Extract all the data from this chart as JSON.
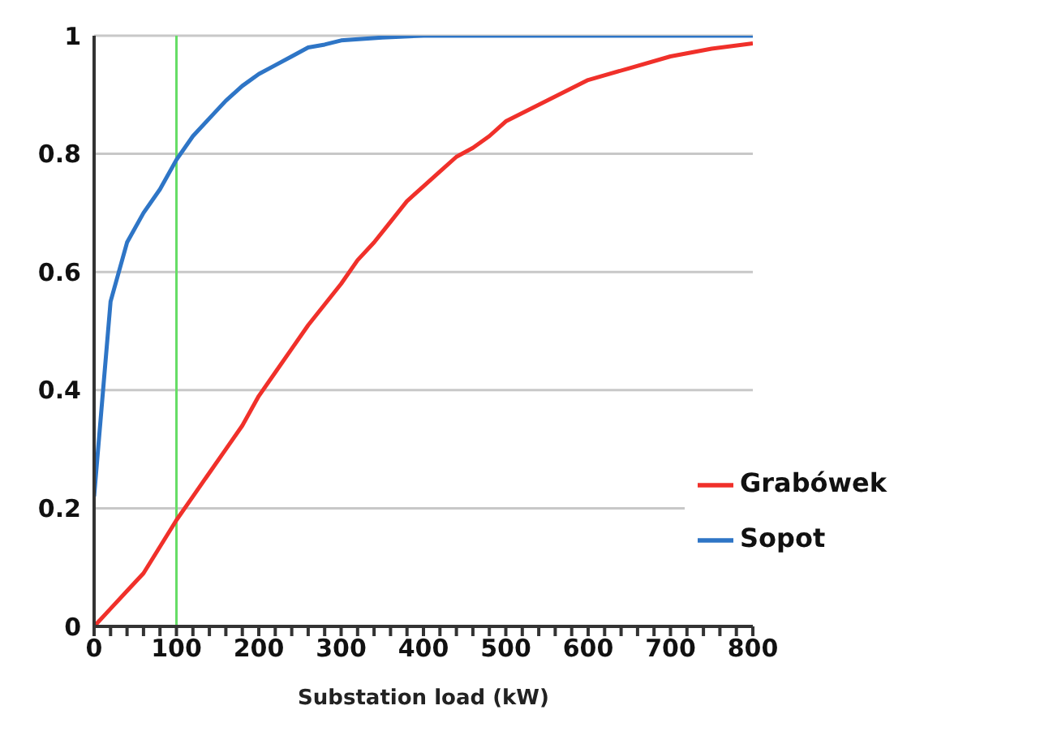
{
  "chart_data": {
    "type": "line",
    "xlabel": "Substation load (kW)",
    "xlim": [
      0,
      800
    ],
    "xticks": [
      0,
      {
        "value": 20,
        "label": null
      },
      {
        "value": 40,
        "label": null
      },
      {
        "value": 60,
        "label": null
      },
      {
        "value": 80,
        "label": null
      },
      100,
      {
        "value": 120,
        "label": null
      },
      {
        "value": 140,
        "label": null
      },
      {
        "value": 160,
        "label": null
      },
      {
        "value": 180,
        "label": null
      },
      200,
      {
        "value": 220,
        "label": null
      },
      {
        "value": 240,
        "label": null
      },
      {
        "value": 260,
        "label": null
      },
      {
        "value": 280,
        "label": null
      },
      300,
      {
        "value": 320,
        "label": null
      },
      {
        "value": 340,
        "label": null
      },
      {
        "value": 360,
        "label": null
      },
      {
        "value": 380,
        "label": null
      },
      400,
      {
        "value": 420,
        "label": null
      },
      {
        "value": 440,
        "label": null
      },
      {
        "value": 460,
        "label": null
      },
      {
        "value": 480,
        "label": null
      },
      500,
      {
        "value": 520,
        "label": null
      },
      {
        "value": 540,
        "label": null
      },
      {
        "value": 560,
        "label": null
      },
      {
        "value": 580,
        "label": null
      },
      600,
      {
        "value": 620,
        "label": null
      },
      {
        "value": 640,
        "label": null
      },
      {
        "value": 660,
        "label": null
      },
      {
        "value": 680,
        "label": null
      },
      700,
      {
        "value": 720,
        "label": null
      },
      {
        "value": 740,
        "label": null
      },
      {
        "value": 760,
        "label": null
      },
      {
        "value": 780,
        "label": null
      },
      800
    ],
    "ylim": [
      0,
      1
    ],
    "yticks": [
      0,
      0.2,
      0.4,
      0.6,
      0.8,
      1
    ],
    "grid": "y",
    "legend": "bottom right",
    "marker": "none",
    "line_style": "solid",
    "ref_lines": [
      {
        "axis": "x",
        "value": 100,
        "color": "#66dd66"
      }
    ],
    "series": [
      {
        "name": "Sopot",
        "color": "#2e75c6",
        "x": [
          0,
          20,
          40,
          60,
          80,
          100,
          120,
          140,
          160,
          180,
          200,
          220,
          240,
          260,
          280,
          300,
          350,
          400,
          450,
          500,
          600,
          700,
          800
        ],
        "values": [
          0.22,
          0.55,
          0.65,
          0.7,
          0.74,
          0.79,
          0.83,
          0.86,
          0.89,
          0.915,
          0.935,
          0.95,
          0.965,
          0.98,
          0.985,
          0.992,
          0.997,
          1,
          1,
          1,
          1,
          1,
          1
        ]
      },
      {
        "name": "Grabówek",
        "color": "#f0302a",
        "x": [
          0,
          20,
          40,
          60,
          80,
          100,
          120,
          140,
          160,
          180,
          200,
          220,
          240,
          260,
          280,
          300,
          320,
          340,
          360,
          380,
          400,
          420,
          440,
          460,
          480,
          500,
          550,
          600,
          650,
          700,
          750,
          800
        ],
        "values": [
          0,
          0.03,
          0.06,
          0.09,
          0.135,
          0.18,
          0.22,
          0.26,
          0.3,
          0.34,
          0.39,
          0.43,
          0.47,
          0.51,
          0.545,
          0.58,
          0.62,
          0.65,
          0.685,
          0.72,
          0.745,
          0.77,
          0.795,
          0.81,
          0.83,
          0.855,
          0.89,
          0.925,
          0.945,
          0.965,
          0.978,
          0.987
        ]
      }
    ]
  }
}
